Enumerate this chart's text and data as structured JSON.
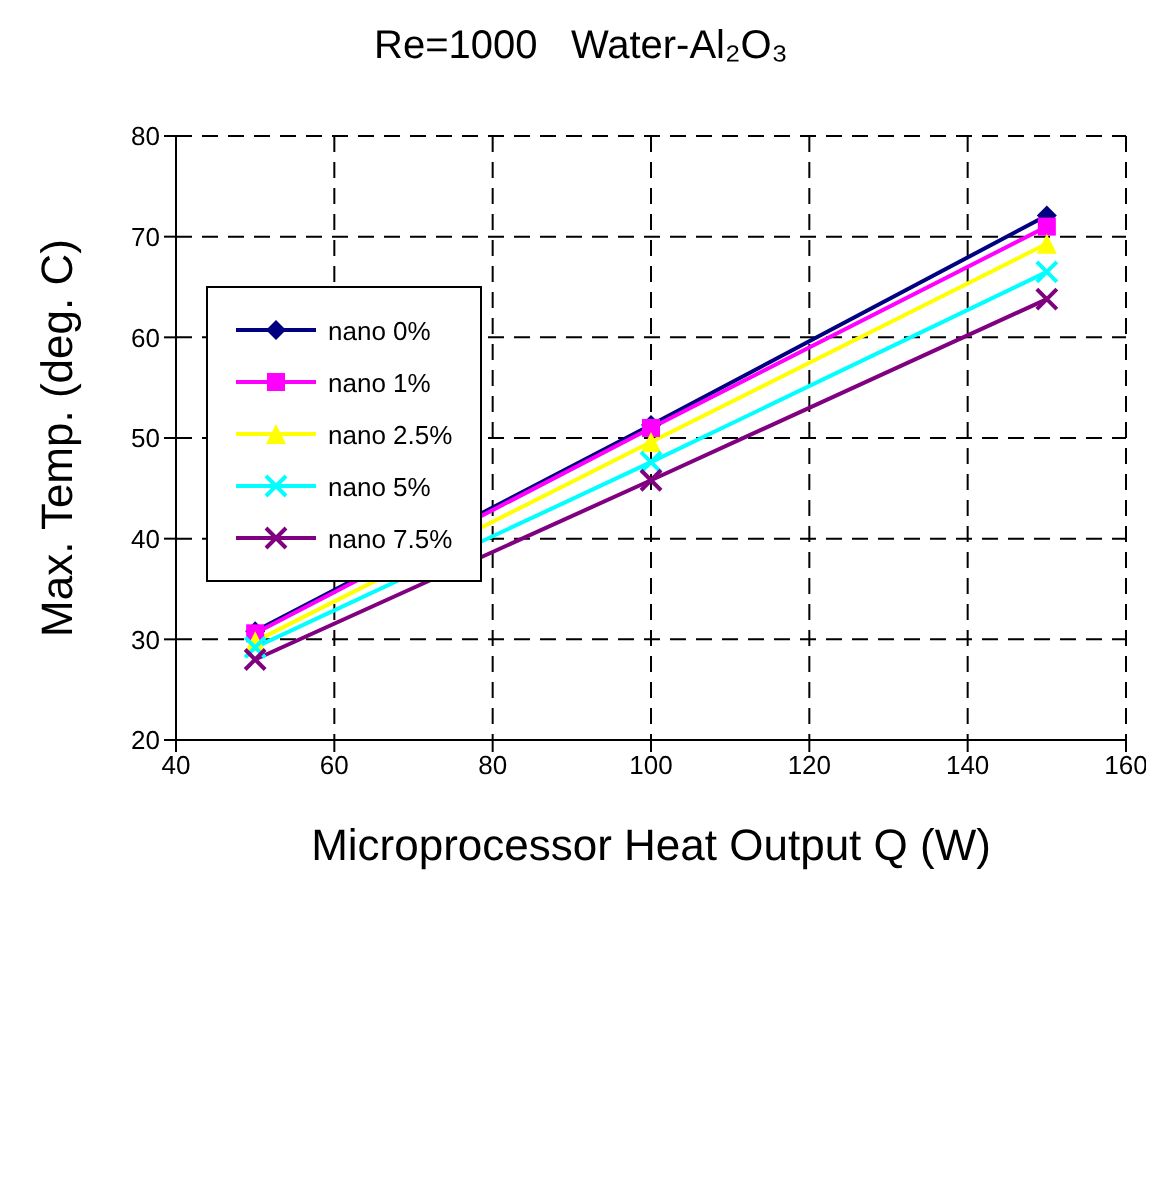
{
  "chart_data": {
    "type": "line",
    "title": "Re=1000   Water-Al₂O₃",
    "xlabel": "Microprocessor Heat Output Q (W)",
    "ylabel": "Max. Temp. (deg. C)",
    "x": [
      50,
      100,
      150
    ],
    "series": [
      {
        "name": "nano 0%",
        "color": "#000080",
        "marker": "diamond",
        "values": [
          30.8,
          51.3,
          72.1
        ]
      },
      {
        "name": "nano 1%",
        "color": "#ff00ff",
        "marker": "square",
        "values": [
          30.6,
          51.0,
          71.0
        ]
      },
      {
        "name": "nano 2.5%",
        "color": "#ffff00",
        "marker": "triangle",
        "values": [
          29.8,
          49.6,
          69.3
        ]
      },
      {
        "name": "nano 5%",
        "color": "#00ffff",
        "marker": "cross",
        "values": [
          29.2,
          47.6,
          66.5
        ]
      },
      {
        "name": "nano 7.5%",
        "color": "#800080",
        "marker": "cross",
        "values": [
          28.0,
          45.8,
          63.8
        ]
      }
    ],
    "xlim": [
      40,
      160
    ],
    "xticks": [
      40,
      60,
      80,
      100,
      120,
      140,
      160
    ],
    "ylim": [
      20,
      80
    ],
    "yticks": [
      20,
      30,
      40,
      50,
      60,
      70,
      80
    ],
    "grid": true,
    "legend": "top left",
    "line_style": "solid"
  }
}
